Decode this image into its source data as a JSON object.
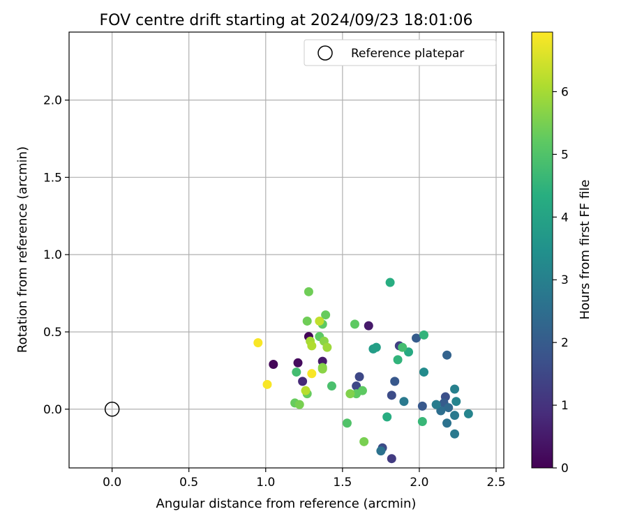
{
  "chart_data": {
    "type": "scatter",
    "title": "FOV centre drift starting at 2024/09/23 18:01:06",
    "xlabel": "Angular distance from reference (arcmin)",
    "ylabel": "Rotation from reference (arcmin)",
    "xlim": [
      -0.28,
      2.55
    ],
    "ylim": [
      -0.38,
      2.44
    ],
    "xticks": [
      {
        "value": 0.0,
        "label": "0.0"
      },
      {
        "value": 0.5,
        "label": "0.5"
      },
      {
        "value": 1.0,
        "label": "1.0"
      },
      {
        "value": 1.5,
        "label": "1.5"
      },
      {
        "value": 2.0,
        "label": "2.0"
      },
      {
        "value": 2.5,
        "label": "2.5"
      }
    ],
    "yticks": [
      {
        "value": 0.0,
        "label": "0.0"
      },
      {
        "value": 0.5,
        "label": "0.5"
      },
      {
        "value": 1.0,
        "label": "1.0"
      },
      {
        "value": 1.5,
        "label": "1.5"
      },
      {
        "value": 2.0,
        "label": "2.0"
      }
    ],
    "grid": true,
    "legend": {
      "position": "top-right",
      "entries": [
        {
          "label": "Reference platepar",
          "marker": "open-circle"
        }
      ]
    },
    "reference_point": {
      "x": 0.0,
      "y": 0.0
    },
    "colorbar": {
      "label": "Hours from first FF file",
      "colormap": "viridis",
      "range": [
        0,
        6.95
      ],
      "ticks": [
        {
          "value": 0,
          "label": "0"
        },
        {
          "value": 1,
          "label": "1"
        },
        {
          "value": 2,
          "label": "2"
        },
        {
          "value": 3,
          "label": "3"
        },
        {
          "value": 4,
          "label": "4"
        },
        {
          "value": 5,
          "label": "5"
        },
        {
          "value": 6,
          "label": "6"
        }
      ]
    },
    "points": [
      {
        "x": 1.05,
        "y": 0.29,
        "c": 0.1
      },
      {
        "x": 1.21,
        "y": 0.3,
        "c": 0.2
      },
      {
        "x": 1.28,
        "y": 0.47,
        "c": 0.1
      },
      {
        "x": 1.67,
        "y": 0.54,
        "c": 0.5
      },
      {
        "x": 1.37,
        "y": 0.31,
        "c": 0.5
      },
      {
        "x": 1.24,
        "y": 0.18,
        "c": 0.8
      },
      {
        "x": 1.82,
        "y": -0.32,
        "c": 1.2
      },
      {
        "x": 1.87,
        "y": 0.41,
        "c": 1.3
      },
      {
        "x": 1.61,
        "y": 0.21,
        "c": 1.5
      },
      {
        "x": 1.59,
        "y": 0.15,
        "c": 1.5
      },
      {
        "x": 1.76,
        "y": -0.25,
        "c": 1.6
      },
      {
        "x": 1.82,
        "y": 0.09,
        "c": 1.6
      },
      {
        "x": 1.84,
        "y": 0.18,
        "c": 1.9
      },
      {
        "x": 2.17,
        "y": 0.08,
        "c": 1.7
      },
      {
        "x": 1.98,
        "y": 0.46,
        "c": 2.0
      },
      {
        "x": 2.02,
        "y": 0.02,
        "c": 1.9
      },
      {
        "x": 2.18,
        "y": 0.35,
        "c": 2.2
      },
      {
        "x": 2.16,
        "y": 0.04,
        "c": 2.0
      },
      {
        "x": 2.19,
        "y": 0.01,
        "c": 2.4
      },
      {
        "x": 2.14,
        "y": -0.01,
        "c": 2.5
      },
      {
        "x": 1.75,
        "y": -0.27,
        "c": 2.6
      },
      {
        "x": 2.18,
        "y": -0.09,
        "c": 2.6
      },
      {
        "x": 1.9,
        "y": 0.05,
        "c": 2.8
      },
      {
        "x": 2.11,
        "y": 0.03,
        "c": 2.9
      },
      {
        "x": 2.23,
        "y": -0.04,
        "c": 2.8
      },
      {
        "x": 2.23,
        "y": -0.16,
        "c": 2.8
      },
      {
        "x": 2.23,
        "y": 0.13,
        "c": 3.0
      },
      {
        "x": 2.24,
        "y": 0.05,
        "c": 3.1
      },
      {
        "x": 2.32,
        "y": -0.03,
        "c": 3.1
      },
      {
        "x": 2.03,
        "y": 0.24,
        "c": 3.3
      },
      {
        "x": 1.7,
        "y": 0.39,
        "c": 3.8
      },
      {
        "x": 1.72,
        "y": 0.4,
        "c": 3.9
      },
      {
        "x": 1.93,
        "y": 0.37,
        "c": 4.2
      },
      {
        "x": 1.81,
        "y": 0.82,
        "c": 4.3
      },
      {
        "x": 1.79,
        "y": -0.05,
        "c": 4.3
      },
      {
        "x": 1.86,
        "y": 0.32,
        "c": 4.5
      },
      {
        "x": 2.03,
        "y": 0.48,
        "c": 4.5
      },
      {
        "x": 2.02,
        "y": -0.08,
        "c": 4.6
      },
      {
        "x": 1.89,
        "y": 0.4,
        "c": 4.8
      },
      {
        "x": 1.2,
        "y": 0.24,
        "c": 4.8
      },
      {
        "x": 1.43,
        "y": 0.15,
        "c": 4.9
      },
      {
        "x": 1.53,
        "y": -0.09,
        "c": 5.0
      },
      {
        "x": 1.59,
        "y": 0.1,
        "c": 5.2
      },
      {
        "x": 1.63,
        "y": 0.12,
        "c": 5.2
      },
      {
        "x": 1.58,
        "y": 0.55,
        "c": 5.2
      },
      {
        "x": 1.37,
        "y": 0.55,
        "c": 5.2
      },
      {
        "x": 1.39,
        "y": 0.61,
        "c": 5.3
      },
      {
        "x": 1.35,
        "y": 0.47,
        "c": 5.2
      },
      {
        "x": 1.27,
        "y": 0.57,
        "c": 5.4
      },
      {
        "x": 1.28,
        "y": 0.76,
        "c": 5.4
      },
      {
        "x": 1.27,
        "y": 0.1,
        "c": 5.3
      },
      {
        "x": 1.19,
        "y": 0.04,
        "c": 5.3
      },
      {
        "x": 1.22,
        "y": 0.03,
        "c": 5.5
      },
      {
        "x": 1.64,
        "y": -0.21,
        "c": 5.5
      },
      {
        "x": 1.55,
        "y": 0.1,
        "c": 5.6
      },
      {
        "x": 1.37,
        "y": 0.27,
        "c": 5.6
      },
      {
        "x": 1.37,
        "y": 0.26,
        "c": 5.7
      },
      {
        "x": 1.38,
        "y": 0.44,
        "c": 5.7
      },
      {
        "x": 1.4,
        "y": 0.4,
        "c": 5.9
      },
      {
        "x": 1.29,
        "y": 0.44,
        "c": 6.0
      },
      {
        "x": 1.3,
        "y": 0.41,
        "c": 6.1
      },
      {
        "x": 1.26,
        "y": 0.12,
        "c": 6.2
      },
      {
        "x": 1.35,
        "y": 0.57,
        "c": 6.3
      },
      {
        "x": 1.3,
        "y": 0.23,
        "c": 6.9
      },
      {
        "x": 0.95,
        "y": 0.43,
        "c": 6.9
      },
      {
        "x": 1.01,
        "y": 0.16,
        "c": 6.9
      }
    ]
  }
}
